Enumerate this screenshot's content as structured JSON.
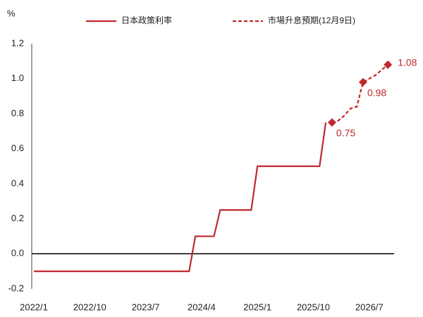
{
  "chart_data": {
    "type": "line",
    "y_label": "%",
    "series": [
      {
        "name": "日本政策利率",
        "color": "#c0282d",
        "dashed": false,
        "x": [
          "2022/1",
          "2024/2",
          "2024/3",
          "2024/6",
          "2024/7",
          "2024/12",
          "2025/1",
          "2025/11",
          "2025/12"
        ],
        "values": [
          -0.1,
          -0.1,
          0.1,
          0.1,
          0.25,
          0.25,
          0.5,
          0.5,
          0.75
        ]
      },
      {
        "name": "市場升息預期(12月9日)",
        "color": "#c0282d",
        "dashed": true,
        "x": [
          "2026/1",
          "2026/2",
          "2026/3",
          "2026/4",
          "2026/5",
          "2026/6",
          "2026/7",
          "2026/8",
          "2026/9",
          "2026/10"
        ],
        "values": [
          0.75,
          0.76,
          0.79,
          0.83,
          0.84,
          0.98,
          1.0,
          1.02,
          1.05,
          1.08
        ],
        "value_labels": [
          "0.75",
          null,
          null,
          null,
          null,
          "0.98",
          null,
          null,
          null,
          "1.08"
        ]
      }
    ],
    "xlim": [
      "2022/1",
      "2026/11"
    ],
    "xticks": [
      "2022/1",
      "2022/10",
      "2023/7",
      "2024/4",
      "2025/1",
      "2025/10",
      "2026/7"
    ],
    "ylim": [
      -0.2,
      1.2
    ],
    "yticks": [
      -0.2,
      {
        "value": 0,
        "label": "0.0"
      },
      0.2,
      0.4,
      0.6,
      0.8,
      {
        "value": 1,
        "label": "1.0"
      },
      1.2
    ],
    "grid": false
  }
}
